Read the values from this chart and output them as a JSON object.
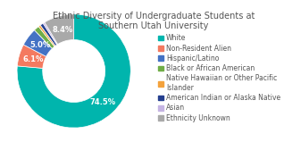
{
  "title": "Ethnic Diversity of Undergraduate Students at\nSouthern Utah University",
  "labels": [
    "White",
    "Non-Resident Alien",
    "Hispanic/Latino",
    "Black or African American",
    "Native Hawaiian or Other Pacific\nIslander",
    "American Indian or Alaska Native",
    "Asian",
    "Ethnicity Unknown"
  ],
  "values": [
    74.5,
    6.1,
    5.0,
    1.5,
    0.6,
    0.9,
    0.5,
    8.4
  ],
  "colors": [
    "#00b5ad",
    "#f47a60",
    "#4472c4",
    "#70ad47",
    "#f4a23c",
    "#243f8f",
    "#c5b4e3",
    "#a9a9a9"
  ],
  "pct_labels": [
    "74.5%",
    "6.1%",
    "5.0%",
    "",
    "",
    "",
    "",
    "8.4%"
  ],
  "background": "#ffffff",
  "title_fontsize": 7,
  "label_fontsize": 6,
  "legend_fontsize": 5.5
}
